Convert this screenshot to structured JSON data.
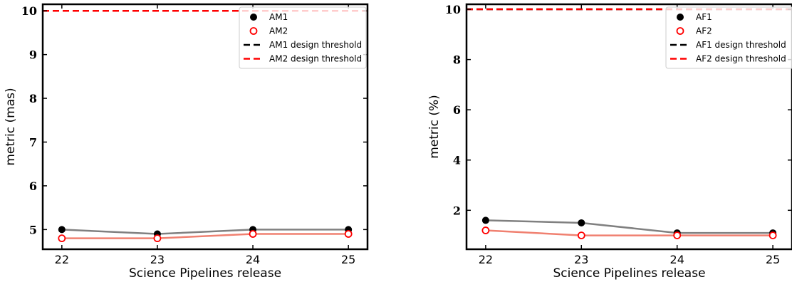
{
  "chart_data": [
    {
      "type": "line",
      "xlabel": "Science Pipelines release",
      "ylabel": "metric (mas)",
      "x": [
        22,
        23,
        24,
        25
      ],
      "xlim": [
        21.8,
        25.2
      ],
      "ylim": [
        4.55,
        10.15
      ],
      "yticks": [
        5,
        6,
        7,
        8,
        9,
        10
      ],
      "series": [
        {
          "name": "AM1",
          "values": [
            5.0,
            4.9,
            5.0,
            5.0
          ],
          "line_color": "#808080",
          "marker": "filled",
          "marker_color": "#000000"
        },
        {
          "name": "AM2",
          "values": [
            4.8,
            4.8,
            4.9,
            4.9
          ],
          "line_color": "#f08070",
          "marker": "open",
          "marker_color": "#ff0000"
        }
      ],
      "thresholds": [
        {
          "name": "AM1 design threshold",
          "value": 10,
          "color": "#000000"
        },
        {
          "name": "AM2 design threshold",
          "value": 10,
          "color": "#ff0000"
        }
      ],
      "legend": "top-right",
      "grid": false
    },
    {
      "type": "line",
      "xlabel": "Science Pipelines release",
      "ylabel": "metric (%)",
      "x": [
        22,
        23,
        24,
        25
      ],
      "xlim": [
        21.8,
        25.2
      ],
      "ylim": [
        0.45,
        10.2
      ],
      "yticks": [
        2,
        4,
        6,
        8,
        10
      ],
      "series": [
        {
          "name": "AF1",
          "values": [
            1.6,
            1.5,
            1.1,
            1.1
          ],
          "line_color": "#808080",
          "marker": "filled",
          "marker_color": "#000000"
        },
        {
          "name": "AF2",
          "values": [
            1.2,
            1.0,
            1.0,
            1.0
          ],
          "line_color": "#f08070",
          "marker": "open",
          "marker_color": "#ff0000"
        }
      ],
      "thresholds": [
        {
          "name": "AF1 design threshold",
          "value": 10,
          "color": "#000000"
        },
        {
          "name": "AF2 design threshold",
          "value": 10,
          "color": "#ff0000"
        }
      ],
      "legend": "top-right",
      "grid": false
    }
  ]
}
